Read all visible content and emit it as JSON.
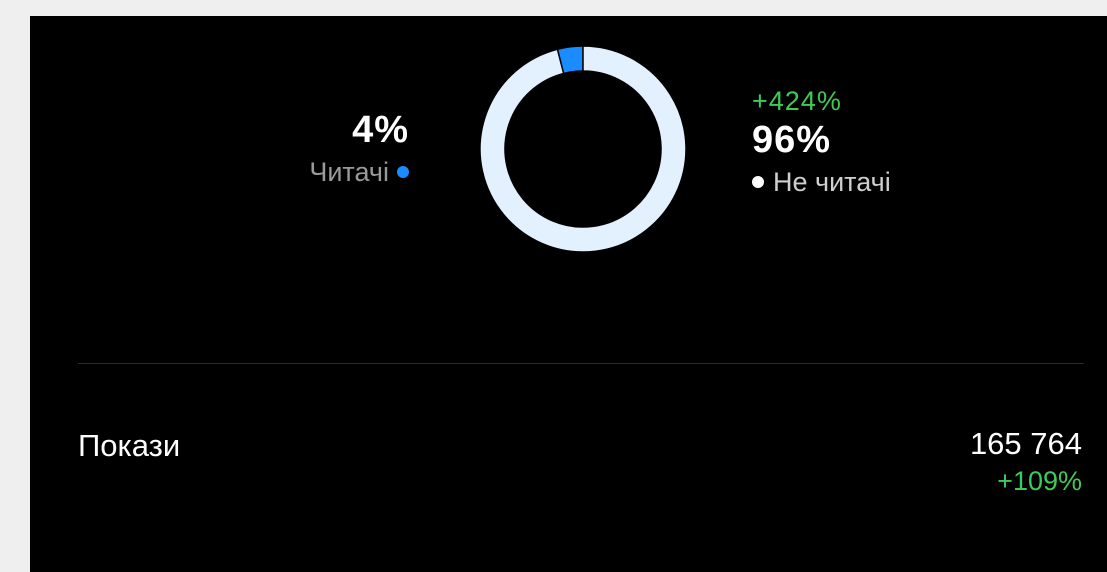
{
  "colors": {
    "readers": "#1a8cff",
    "non_readers": "#e3f0fd",
    "positive": "#3ccb55",
    "background": "#000000"
  },
  "audience": {
    "readers": {
      "percent": "4%",
      "label": "Читачі"
    },
    "non_readers": {
      "change": "+424%",
      "percent": "96%",
      "label": "Не читачі"
    }
  },
  "chart_data": {
    "type": "pie",
    "categories": [
      "Читачі",
      "Не читачі"
    ],
    "values": [
      4,
      96
    ]
  },
  "impressions": {
    "label": "Покази",
    "value": "165 764",
    "change": "+109%"
  }
}
